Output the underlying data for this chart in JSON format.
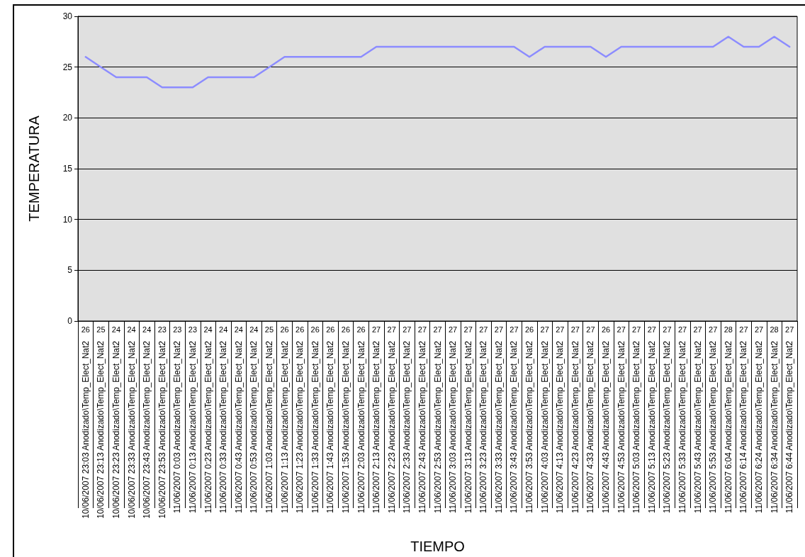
{
  "chart_data": {
    "type": "line",
    "xlabel": "TIEMPO",
    "ylabel": "TEMPERATURA",
    "categories": [
      "10/06/2007 23:03 Anodizado\\Temp_Elect_Nat2",
      "10/06/2007 23:13 Anodizado\\Temp_Elect_Nat2",
      "10/06/2007 23:23 Anodizado\\Temp_Elect_Nat2",
      "10/06/2007 23:33 Anodizado\\Temp_Elect_Nat2",
      "10/06/2007 23:43 Anodizado\\Temp_Elect_Nat2",
      "10/06/2007 23:53 Anodizado\\Temp_Elect_Nat2",
      "11/06/2007 0:03 Anodizado\\Temp_Elect_Nat2",
      "11/06/2007 0:13 Anodizado\\Temp_Elect_Nat2",
      "11/06/2007 0:23 Anodizado\\Temp_Elect_Nat2",
      "11/06/2007 0:33 Anodizado\\Temp_Elect_Nat2",
      "11/06/2007 0:43 Anodizado\\Temp_Elect_Nat2",
      "11/06/2007 0:53 Anodizado\\Temp_Elect_Nat2",
      "11/06/2007 1:03 Anodizado\\Temp_Elect_Nat2",
      "11/06/2007 1:13 Anodizado\\Temp_Elect_Nat2",
      "11/06/2007 1:23 Anodizado\\Temp_Elect_Nat2",
      "11/06/2007 1:33 Anodizado\\Temp_Elect_Nat2",
      "11/06/2007 1:43 Anodizado\\Temp_Elect_Nat2",
      "11/06/2007 1:53 Anodizado\\Temp_Elect_Nat2",
      "11/06/2007 2:03 Anodizado\\Temp_Elect_Nat2",
      "11/06/2007 2:13 Anodizado\\Temp_Elect_Nat2",
      "11/06/2007 2:23 Anodizado\\Temp_Elect_Nat2",
      "11/06/2007 2:33 Anodizado\\Temp_Elect_Nat2",
      "11/06/2007 2:43 Anodizado\\Temp_Elect_Nat2",
      "11/06/2007 2:53 Anodizado\\Temp_Elect_Nat2",
      "11/06/2007 3:03 Anodizado\\Temp_Elect_Nat2",
      "11/06/2007 3:13 Anodizado\\Temp_Elect_Nat2",
      "11/06/2007 3:23 Anodizado\\Temp_Elect_Nat2",
      "11/06/2007 3:33 Anodizado\\Temp_Elect_Nat2",
      "11/06/2007 3:43 Anodizado\\Temp_Elect_Nat2",
      "11/06/2007 3:53 Anodizado\\Temp_Elect_Nat2",
      "11/06/2007 4:03 Anodizado\\Temp_Elect_Nat2",
      "11/06/2007 4:13 Anodizado\\Temp_Elect_Nat2",
      "11/06/2007 4:23 Anodizado\\Temp_Elect_Nat2",
      "11/06/2007 4:33 Anodizado\\Temp_Elect_Nat2",
      "11/06/2007 4:43 Anodizado\\Temp_Elect_Nat2",
      "11/06/2007 4:53 Anodizado\\Temp_Elect_Nat2",
      "11/06/2007 5:03 Anodizado\\Temp_Elect_Nat2",
      "11/06/2007 5:13 Anodizado\\Temp_Elect_Nat2",
      "11/06/2007 5:23 Anodizado\\Temp_Elect_Nat2",
      "11/06/2007 5:33 Anodizado\\Temp_Elect_Nat2",
      "11/06/2007 5:43 Anodizado\\Temp_Elect_Nat2",
      "11/06/2007 5:53 Anodizado\\Temp_Elect_Nat2",
      "11/06/2007 6:04 Anodizado\\Temp_Elect_Nat2",
      "11/06/2007 6:14 Anodizado\\Temp_Elect_Nat2",
      "11/06/2007 6:24 Anodizado\\Temp_Elect_Nat2",
      "11/06/2007 6:34 Anodizado\\Temp_Elect_Nat2",
      "11/06/2007 6:44 Anodizado\\Temp_Elect_Nat2"
    ],
    "series": [
      {
        "color": "#8c8cff",
        "values": [
          26,
          25,
          24,
          24,
          24,
          23,
          23,
          23,
          24,
          24,
          24,
          24,
          25,
          26,
          26,
          26,
          26,
          26,
          26,
          27,
          27,
          27,
          27,
          27,
          27,
          27,
          27,
          27,
          27,
          26,
          27,
          27,
          27,
          27,
          26,
          27,
          27,
          27,
          27,
          27,
          27,
          27,
          28,
          27,
          27,
          28,
          27
        ]
      }
    ],
    "ylim": [
      0,
      30
    ],
    "yticks": [
      0,
      5,
      10,
      15,
      20,
      25,
      30
    ],
    "grid": "y",
    "marker": "none",
    "line_style": "solid",
    "data_labels": true
  }
}
